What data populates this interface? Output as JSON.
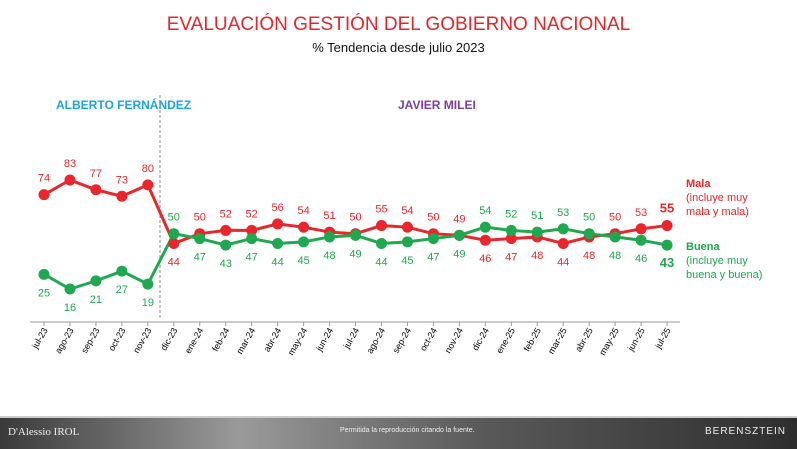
{
  "chart_data": {
    "type": "line",
    "title": "EVALUACIÓN GESTIÓN DEL GOBIERNO NACIONAL",
    "subtitle": "% Tendencia desde julio 2023",
    "categories": [
      "jul-23",
      "ago-23",
      "sep-23",
      "oct-23",
      "nov-23",
      "dic-23",
      "ene-24",
      "feb-24",
      "mar-24",
      "abr-24",
      "may-24",
      "jun-24",
      "jul-24",
      "ago-24",
      "sep-24",
      "oct-24",
      "nov-24",
      "dic-24",
      "ene-25",
      "feb-25",
      "mar-25",
      "abr-25",
      "may-25",
      "jun-25",
      "jul-25"
    ],
    "series": [
      {
        "name": "Mala",
        "note": "(incluye muy mala y mala)",
        "color": "#e8262b",
        "values": [
          74,
          83,
          77,
          73,
          80,
          44,
          50,
          52,
          52,
          56,
          54,
          51,
          50,
          55,
          54,
          50,
          49,
          46,
          47,
          48,
          44,
          48,
          50,
          53,
          55
        ]
      },
      {
        "name": "Buena",
        "note": "(incluye muy buena y buena)",
        "color": "#1fa84f",
        "values": [
          25,
          16,
          21,
          27,
          19,
          50,
          47,
          43,
          47,
          44,
          45,
          48,
          49,
          44,
          45,
          47,
          49,
          54,
          52,
          51,
          53,
          50,
          48,
          46,
          43
        ]
      }
    ],
    "annotations": [
      {
        "text": "ALBERTO FERNÁNDEZ",
        "color": "#1ba6e0"
      },
      {
        "text": "JAVIER MILEI",
        "color": "#7b3fa0"
      }
    ]
  },
  "footer": {
    "left": "D'Alessio IROL",
    "center": "Permitida la reproducción citando la fuente.",
    "right": "BERENSZTEIN"
  }
}
